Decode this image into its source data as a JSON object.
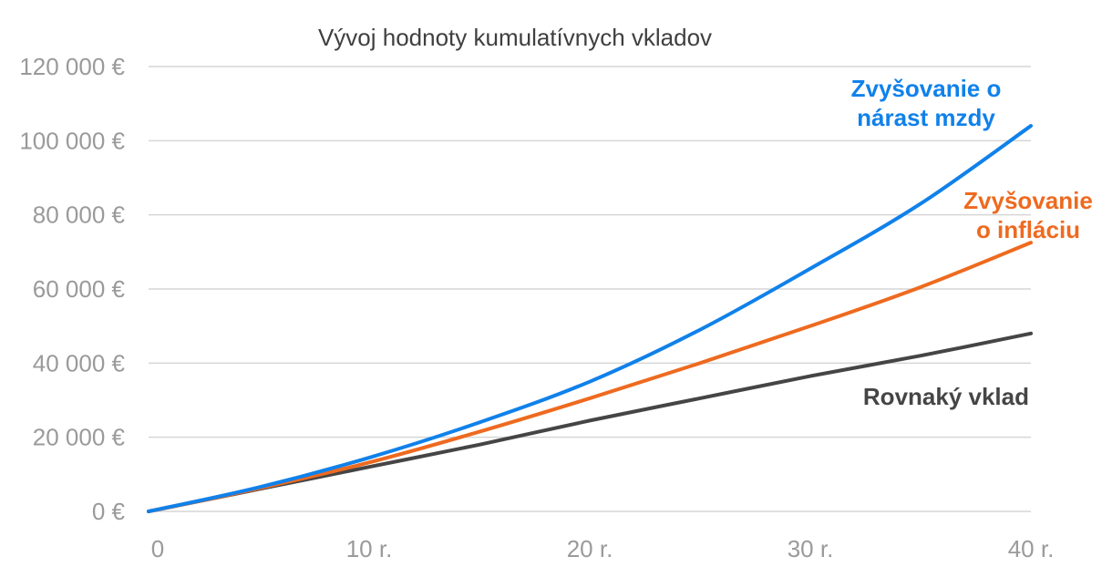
{
  "chart_data": {
    "type": "line",
    "title": "Vývoj hodnoty kumulatívnych vkladov",
    "xlabel": "",
    "ylabel": "",
    "xlim": [
      0,
      40
    ],
    "ylim": [
      0,
      120000
    ],
    "grid": true,
    "legend": "inline labels at line ends",
    "x_ticks": [
      {
        "value": 0,
        "label": "0"
      },
      {
        "value": 10,
        "label": "10 r."
      },
      {
        "value": 20,
        "label": "20 r."
      },
      {
        "value": 30,
        "label": "30 r."
      },
      {
        "value": 40,
        "label": "40 r."
      }
    ],
    "y_ticks": [
      {
        "value": 0,
        "label": "0 €"
      },
      {
        "value": 20000,
        "label": "20 000 €"
      },
      {
        "value": 40000,
        "label": "40 000 €"
      },
      {
        "value": 60000,
        "label": "60 000 €"
      },
      {
        "value": 80000,
        "label": "80 000 €"
      },
      {
        "value": 100000,
        "label": "100 000 €"
      },
      {
        "value": 120000,
        "label": "120 000 €"
      }
    ],
    "x": [
      0,
      5,
      10,
      15,
      20,
      25,
      30,
      35,
      40
    ],
    "series": [
      {
        "id": "rovnaky",
        "name": "Rovnaký vklad",
        "color": "#454545",
        "label_lines": [
          "Rovnaký vklad"
        ],
        "values": [
          0,
          6000,
          12000,
          18000,
          24500,
          30500,
          36500,
          42000,
          48000
        ]
      },
      {
        "id": "inflacia",
        "name": "Zvyšovanie o infláciu",
        "color": "#ee6a1f",
        "label_lines": [
          "Zvyšovanie",
          "o infláciu"
        ],
        "values": [
          0,
          6200,
          13200,
          21500,
          30500,
          40000,
          50000,
          60500,
          72500
        ]
      },
      {
        "id": "mzda",
        "name": "Zvyšovanie o nárast mzdy",
        "color": "#1081ea",
        "label_lines": [
          "Zvyšovanie o",
          "nárast mzdy"
        ],
        "values": [
          0,
          6500,
          14500,
          24000,
          35000,
          49000,
          65500,
          83000,
          104000
        ]
      }
    ]
  }
}
